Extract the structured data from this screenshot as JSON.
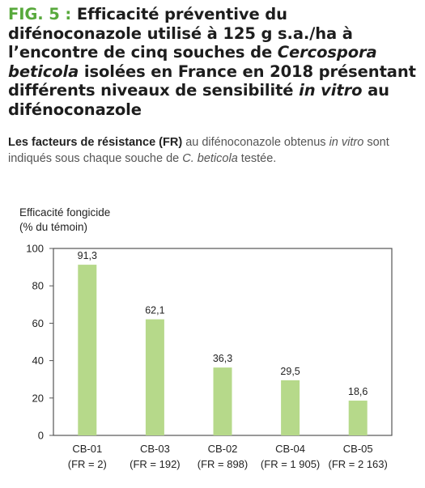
{
  "figure": {
    "fig_label": "FIG. 5 :",
    "title_parts": [
      "Efficacité préventive du difénoconazole utilisé à 125 g s.a./ha à l’encontre de cinq souches de ",
      "Cercospora beticola",
      " isolées en France en 2018 présentant différents niveaux de sensibilité ",
      "in vitro",
      " au difénoconazole"
    ],
    "subtitle_parts": [
      "Les facteurs de résistance (FR)",
      " au difénoconazole obtenus ",
      "in vitro",
      " sont indiqués sous chaque souche de ",
      "C. beticola",
      " testée."
    ]
  },
  "chart_data": {
    "type": "bar",
    "ylabel_lines": [
      "Efficacité fongicide",
      "(% du témoin)"
    ],
    "xlabel": "",
    "categories": [
      "CB-01",
      "CB-03",
      "CB-02",
      "CB-04",
      "CB-05"
    ],
    "category_sublabels": [
      "(FR = 2)",
      "(FR = 192)",
      "(FR = 898)",
      "(FR = 1 905)",
      "(FR = 2 163)"
    ],
    "values": [
      91.3,
      62.1,
      36.3,
      29.5,
      18.6
    ],
    "value_labels": [
      "91,3",
      "62,1",
      "36,3",
      "29,5",
      "18,6"
    ],
    "ylim": [
      0,
      100
    ],
    "yticks": [
      0,
      20,
      40,
      60,
      80,
      100
    ],
    "grid": false,
    "bar_color": "#b6d98a"
  }
}
